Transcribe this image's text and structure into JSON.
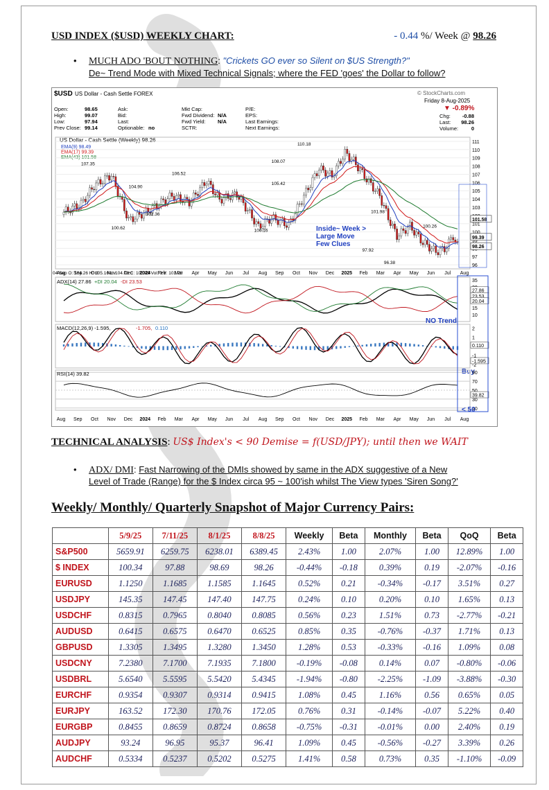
{
  "header": {
    "title": "USD INDEX ($USD) WEEKLY CHART:",
    "change": "- 0.44",
    "change_suffix": " %/ Week @ ",
    "price": "98.26"
  },
  "bullet1": {
    "lead": "MUCH ADO 'BOUT NOTHING",
    "colon": ": ",
    "quote": "\"Crickets GO ever so Silent on $US Strength?\"",
    "sub": "De~ Trend Mode with Mixed Technical Signals; where the FED 'goes' the Dollar to follow?"
  },
  "chart": {
    "symbol": "$USD",
    "symbol_desc": "US Dollar - Cash Settle  FOREX",
    "source": "© StockCharts.com",
    "date": "Friday  8-Aug-2025",
    "pct_change": "▼ -0.89%",
    "quote_rows": [
      [
        "Open:",
        "98.65",
        "Ask:",
        "",
        "Mkt Cap:",
        "",
        "P/E:",
        ""
      ],
      [
        "High:",
        "99.07",
        "Bid:",
        "",
        "Fwd Dividend:",
        "N/A",
        "EPS:",
        ""
      ],
      [
        "Low:",
        "97.94",
        "Last:",
        "",
        "Fwd Yield:",
        "N/A",
        "Last Earnings:",
        ""
      ],
      [
        "Prev Close:",
        "99.14",
        "Optionable:",
        "no",
        "SCTR:",
        "",
        "Next Earnings:",
        ""
      ]
    ],
    "right_rows": [
      [
        "Chg:",
        "-0.88"
      ],
      [
        "Last:",
        "98.26"
      ],
      [
        "Volume:",
        "0"
      ]
    ],
    "main_label": "US Dollar - Cash Settle (Weekly) 98.26",
    "ema_labels": [
      {
        "text": "EMA(9) 98.49",
        "color": "#1f3fbf"
      },
      {
        "text": "EMA(17) 99.39",
        "color": "#d11a1a"
      },
      {
        "text": "EMA(43) 101.58",
        "color": "#1d7a2e"
      }
    ],
    "price_annotations": [
      "107.35",
      "104.90",
      "106.52",
      "100.62",
      "102.36",
      "100.16",
      "108.07",
      "110.18",
      "105.42",
      "101.98",
      "100.26",
      "97.92",
      "96.38"
    ],
    "inside_note": [
      "Inside~ Week >",
      "Large Move",
      "Few Clues"
    ],
    "price_axis": [
      "111",
      "110",
      "109",
      "108",
      "107",
      "106",
      "105",
      "104",
      "103",
      "102",
      "101",
      "100",
      "99",
      "98",
      "97",
      "96"
    ],
    "price_tags": [
      "101.58",
      "99.39",
      "98.26"
    ],
    "ohlc_strip": "04 Sep  O: 104.26   H: 105.16   L: 104.03   C: 105.09   Vol: 0   Y: 101.78",
    "x_axis": [
      "Aug",
      "Sep",
      "Oct",
      "Nov",
      "Dec",
      "2024",
      "Feb",
      "Mar",
      "Apr",
      "May",
      "Jun",
      "Jul",
      "Aug",
      "Sep",
      "Oct",
      "Nov",
      "Dec",
      "2025",
      "Feb",
      "Mar",
      "Apr",
      "May",
      "Jun",
      "Jul",
      "Aug"
    ],
    "adx_label": "ADX(14) 27.86",
    "dip_label": "+DI 20.04",
    "dim_label": "-DI 23.53",
    "adx_axis": [
      "35",
      "30",
      "25",
      "20",
      "15",
      "10"
    ],
    "adx_tags": [
      "27.86",
      "23.53",
      "20.04"
    ],
    "no_trend": "NO Trend",
    "macd_label": "MACD(12,26,9) -1.595,",
    "macd_sig": "-1.705,",
    "macd_hist": "0.110",
    "macd_axis": [
      "2",
      "1",
      "0",
      "-1",
      "-2"
    ],
    "macd_tags": [
      "0.110",
      "-1.595"
    ],
    "buy": "Buy",
    "rsi_label": "RSI(14) 39.82",
    "rsi_axis": [
      "90",
      "70",
      "50",
      "30",
      "10"
    ],
    "rsi_tag": "39.82",
    "lt50": "< 50",
    "colors": {
      "up": "#ffffff",
      "down": "#d11a1a",
      "ema9": "#1f3fbf",
      "ema17": "#d11a1a",
      "ema43": "#1d7a2e",
      "annot": "#1f3fbf"
    }
  },
  "ta": {
    "label": "TECHNICAL ANALYSIS",
    "colon": ":  ",
    "text": "US$ Index's < 90 Demise = f(USD/JPY); until then we WAIT"
  },
  "bullet2": {
    "lead": "ADX/ DMI",
    "colon": ": ",
    "text1": "Fast Narrowing of the DMIs showed by same in the ADX suggestive of a New",
    "text2": "Level of Trade (Range) for the $ Index circa 95 ~ 100'ish whilst The View types 'Siren Song?'"
  },
  "snapshot_title": "Weekly/ Monthly/ Quarterly Snapshot of Major Currency Pairs:",
  "table": {
    "headers": [
      "",
      "5/9/25",
      "7/11/25",
      "8/1/25",
      "8/8/25",
      "Weekly",
      "Beta",
      "Monthly",
      "Beta",
      "QoQ",
      "Beta"
    ],
    "rows": [
      [
        "S&P500",
        "5659.91",
        "6259.75",
        "6238.01",
        "6389.45",
        "2.43%",
        "1.00",
        "2.07%",
        "1.00",
        "12.89%",
        "1.00"
      ],
      [
        "$ INDEX",
        "100.34",
        "97.88",
        "98.69",
        "98.26",
        "-0.44%",
        "-0.18",
        "0.39%",
        "0.19",
        "-2.07%",
        "-0.16"
      ],
      [
        "EURUSD",
        "1.1250",
        "1.1685",
        "1.1585",
        "1.1645",
        "0.52%",
        "0.21",
        "-0.34%",
        "-0.17",
        "3.51%",
        "0.27"
      ],
      [
        "USDJPY",
        "145.35",
        "147.45",
        "147.40",
        "147.75",
        "0.24%",
        "0.10",
        "0.20%",
        "0.10",
        "1.65%",
        "0.13"
      ],
      [
        "USDCHF",
        "0.8315",
        "0.7965",
        "0.8040",
        "0.8085",
        "0.56%",
        "0.23",
        "1.51%",
        "0.73",
        "-2.77%",
        "-0.21"
      ],
      [
        "AUDUSD",
        "0.6415",
        "0.6575",
        "0.6470",
        "0.6525",
        "0.85%",
        "0.35",
        "-0.76%",
        "-0.37",
        "1.71%",
        "0.13"
      ],
      [
        "GBPUSD",
        "1.3305",
        "1.3495",
        "1.3280",
        "1.3450",
        "1.28%",
        "0.53",
        "-0.33%",
        "-0.16",
        "1.09%",
        "0.08"
      ],
      [
        "USDCNY",
        "7.2380",
        "7.1700",
        "7.1935",
        "7.1800",
        "-0.19%",
        "-0.08",
        "0.14%",
        "0.07",
        "-0.80%",
        "-0.06"
      ],
      [
        "USDBRL",
        "5.6540",
        "5.5595",
        "5.5420",
        "5.4345",
        "-1.94%",
        "-0.80",
        "-2.25%",
        "-1.09",
        "-3.88%",
        "-0.30"
      ],
      [
        "EURCHF",
        "0.9354",
        "0.9307",
        "0.9314",
        "0.9415",
        "1.08%",
        "0.45",
        "1.16%",
        "0.56",
        "0.65%",
        "0.05"
      ],
      [
        "EURJPY",
        "163.52",
        "172.30",
        "170.76",
        "172.05",
        "0.76%",
        "0.31",
        "-0.14%",
        "-0.07",
        "5.22%",
        "0.40"
      ],
      [
        "EURGBP",
        "0.8455",
        "0.8659",
        "0.8724",
        "0.8658",
        "-0.75%",
        "-0.31",
        "-0.01%",
        "0.00",
        "2.40%",
        "0.19"
      ],
      [
        "AUDJPY",
        "93.24",
        "96.95",
        "95.37",
        "96.41",
        "1.09%",
        "0.45",
        "-0.56%",
        "-0.27",
        "3.39%",
        "0.26"
      ],
      [
        "AUDCHF",
        "0.5334",
        "0.5237",
        "0.5202",
        "0.5275",
        "1.41%",
        "0.58",
        "0.73%",
        "0.35",
        "-1.10%",
        "-0.09"
      ]
    ]
  }
}
